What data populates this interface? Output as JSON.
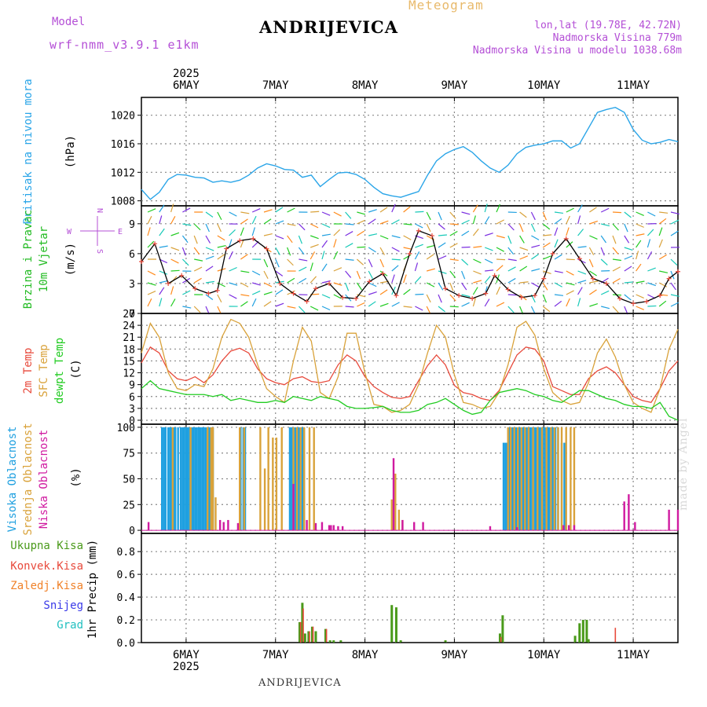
{
  "header": {
    "title": "ANDRIJEVICA",
    "subtitle": "Meteogram",
    "model_label": "Model",
    "model_version": "wrf-nmm_v3.9.1 e1km",
    "location_line": "lon,lat (19.78E, 42.72N)",
    "altitude_line": "Nadmorska Visina 779m",
    "model_altitude_line": "Nadmorska Visina u modelu 1038.68m",
    "bottom_title": "ANDRIJEVICA",
    "credit": "made by Angel"
  },
  "colors": {
    "pressure": "#2aa5e8",
    "wind_label": "#22bb22",
    "temp2m": "#e84a3c",
    "sfc": "#d9a23a",
    "dewpt": "#22cc22",
    "high_cloud": "#1fa0e0",
    "mid_cloud": "#d9a23a",
    "low_cloud": "#d01aa0",
    "total_precip": "#4a9a1a",
    "conv_precip": "#e84a3c",
    "frozen_precip": "#f0822a",
    "snow": "#3a3ae8",
    "grad": "#22c0c0",
    "compass": "#b44fd6"
  },
  "chart_data": [
    {
      "type": "line",
      "title": "",
      "ylabel": "Pritisak na nivou mora",
      "unit": "(hPa)",
      "year": "2025",
      "day_labels": [
        "6MAY",
        "7MAY",
        "8MAY",
        "9MAY",
        "10MAY",
        "11MAY"
      ],
      "day_offsets": [
        0.5,
        1.5,
        2.5,
        3.5,
        4.5,
        5.5
      ],
      "xlim": [
        0,
        6
      ],
      "ylim": [
        1007.3,
        1022.5
      ],
      "yticks": [
        1008,
        1012,
        1016,
        1020
      ],
      "series": [
        {
          "name": "Pritisak na nivou mora",
          "x": [
            0,
            0.1,
            0.2,
            0.3,
            0.4,
            0.5,
            0.6,
            0.7,
            0.8,
            0.9,
            1.0,
            1.1,
            1.2,
            1.3,
            1.4,
            1.5,
            1.6,
            1.7,
            1.8,
            1.9,
            2.0,
            2.1,
            2.2,
            2.3,
            2.4,
            2.5,
            2.6,
            2.7,
            2.8,
            2.9,
            3.0,
            3.1,
            3.2,
            3.3,
            3.4,
            3.5,
            3.6,
            3.7,
            3.8,
            3.9,
            4.0,
            4.1,
            4.2,
            4.3,
            4.4,
            4.5,
            4.6,
            4.7,
            4.8,
            4.9,
            5.0,
            5.1,
            5.2,
            5.3,
            5.4,
            5.5,
            5.6,
            5.7,
            5.8,
            5.9,
            6.0
          ],
          "values": [
            1009.6,
            1008.2,
            1009.2,
            1011.0,
            1011.7,
            1011.6,
            1011.3,
            1011.2,
            1010.6,
            1010.8,
            1010.6,
            1010.9,
            1011.6,
            1012.6,
            1013.2,
            1012.9,
            1012.4,
            1012.3,
            1011.3,
            1011.6,
            1010.0,
            1011.0,
            1011.9,
            1012.0,
            1011.7,
            1011.0,
            1009.9,
            1009.0,
            1008.7,
            1008.5,
            1008.9,
            1009.3,
            1011.6,
            1013.6,
            1014.6,
            1015.2,
            1015.6,
            1014.8,
            1013.6,
            1012.6,
            1012.0,
            1013.0,
            1014.6,
            1015.5,
            1015.8,
            1016.0,
            1016.4,
            1016.4,
            1015.4,
            1016.0,
            1018.2,
            1020.4,
            1020.8,
            1021.1,
            1020.4,
            1018.0,
            1016.5,
            1016.0,
            1016.2,
            1016.6,
            1016.3
          ]
        }
      ]
    },
    {
      "type": "line",
      "title": "",
      "ylabel": "10m Vjetar Brzina i Pravac",
      "unit": "(m/s)",
      "compass": {
        "n": "N",
        "s": "S",
        "w": "W",
        "e": "E"
      },
      "xlim": [
        0,
        6
      ],
      "ylim": [
        0,
        10.8
      ],
      "yticks": [
        0,
        3,
        6,
        9
      ],
      "series": [
        {
          "name": "10m Vjetar Brzina",
          "x": [
            0,
            0.15,
            0.3,
            0.45,
            0.6,
            0.75,
            0.85,
            0.95,
            1.1,
            1.25,
            1.4,
            1.55,
            1.7,
            1.85,
            1.95,
            2.1,
            2.25,
            2.4,
            2.55,
            2.7,
            2.85,
            3.0,
            3.1,
            3.25,
            3.4,
            3.55,
            3.7,
            3.85,
            3.95,
            4.1,
            4.25,
            4.4,
            4.5,
            4.6,
            4.75,
            4.9,
            5.05,
            5.2,
            5.35,
            5.5,
            5.65,
            5.8,
            5.9,
            6.0
          ],
          "values": [
            5.2,
            7.0,
            3.0,
            3.8,
            2.5,
            2.0,
            2.3,
            6.5,
            7.3,
            7.5,
            6.5,
            3.0,
            2.0,
            1.2,
            2.5,
            3.0,
            1.6,
            1.5,
            3.2,
            4.0,
            1.8,
            6.0,
            8.3,
            7.8,
            2.5,
            1.8,
            1.5,
            2.0,
            3.8,
            2.4,
            1.6,
            1.8,
            3.5,
            6.0,
            7.5,
            5.5,
            3.5,
            3.0,
            1.5,
            1.0,
            1.2,
            1.8,
            3.5,
            4.2
          ]
        }
      ]
    },
    {
      "type": "line",
      "title": "",
      "ylabels": [
        "2m Temp",
        "SFC Temp",
        "dewpt Temp"
      ],
      "unit": "(C)",
      "xlim": [
        0,
        6
      ],
      "ylim": [
        -1,
        27
      ],
      "yticks": [
        0,
        3,
        6,
        9,
        12,
        15,
        18,
        21,
        24,
        27
      ],
      "x": [
        0,
        0.1,
        0.2,
        0.3,
        0.4,
        0.5,
        0.6,
        0.7,
        0.8,
        0.9,
        1.0,
        1.1,
        1.2,
        1.3,
        1.4,
        1.5,
        1.6,
        1.7,
        1.8,
        1.9,
        2.0,
        2.1,
        2.2,
        2.3,
        2.4,
        2.5,
        2.6,
        2.7,
        2.8,
        2.9,
        3.0,
        3.1,
        3.2,
        3.3,
        3.4,
        3.5,
        3.6,
        3.7,
        3.8,
        3.9,
        4.0,
        4.1,
        4.2,
        4.3,
        4.4,
        4.5,
        4.6,
        4.7,
        4.8,
        4.9,
        5.0,
        5.1,
        5.2,
        5.3,
        5.4,
        5.5,
        5.6,
        5.7,
        5.8,
        5.9,
        6.0
      ],
      "series": [
        {
          "name": "2m Temp",
          "values": [
            14.5,
            18.5,
            17.0,
            12.5,
            10.5,
            10.0,
            11.0,
            9.5,
            11.5,
            15.0,
            17.5,
            18.2,
            17.0,
            13.0,
            10.5,
            9.5,
            9.0,
            10.5,
            11.0,
            9.8,
            9.5,
            10.0,
            14.0,
            16.5,
            15.0,
            11.0,
            8.5,
            7.0,
            5.8,
            5.5,
            6.0,
            10.0,
            13.8,
            16.5,
            14.0,
            8.8,
            7.0,
            6.5,
            5.5,
            5.0,
            7.5,
            12.0,
            16.5,
            18.5,
            18.0,
            15.0,
            8.5,
            7.5,
            6.5,
            6.5,
            10.5,
            12.5,
            13.5,
            12.0,
            9.0,
            6.0,
            5.0,
            4.5,
            8.0,
            12.5,
            15.0
          ]
        },
        {
          "name": "SFC Temp",
          "values": [
            17.0,
            24.5,
            21.0,
            12.0,
            8.0,
            7.5,
            9.0,
            8.5,
            13.0,
            21.0,
            25.5,
            24.5,
            21.0,
            14.0,
            8.0,
            6.0,
            4.5,
            15.0,
            23.5,
            20.0,
            7.0,
            5.5,
            11.0,
            22.0,
            22.0,
            12.0,
            4.0,
            3.5,
            2.0,
            2.5,
            4.0,
            9.0,
            17.0,
            24.0,
            21.0,
            11.5,
            4.5,
            4.0,
            3.0,
            3.5,
            7.0,
            14.0,
            23.5,
            25.0,
            21.5,
            13.0,
            7.0,
            5.0,
            4.0,
            4.5,
            9.5,
            17.0,
            20.5,
            16.0,
            9.0,
            4.5,
            3.0,
            2.0,
            8.0,
            18.0,
            23.0
          ]
        },
        {
          "name": "dewpt Temp",
          "values": [
            8.0,
            10.0,
            8.0,
            7.5,
            7.0,
            6.5,
            6.5,
            6.5,
            6.0,
            6.5,
            5.0,
            5.5,
            5.0,
            4.5,
            4.5,
            5.0,
            4.5,
            6.0,
            5.5,
            5.0,
            6.0,
            5.5,
            5.0,
            3.5,
            3.0,
            3.0,
            3.2,
            3.5,
            2.5,
            2.0,
            2.0,
            2.5,
            4.0,
            4.5,
            5.5,
            4.0,
            2.5,
            1.5,
            2.0,
            5.0,
            7.0,
            7.5,
            8.0,
            7.5,
            6.5,
            6.0,
            5.0,
            4.5,
            6.0,
            7.5,
            7.5,
            6.5,
            5.5,
            5.0,
            4.0,
            3.5,
            3.5,
            3.0,
            4.5,
            1.0,
            0.0
          ]
        }
      ]
    },
    {
      "type": "bar",
      "title": "",
      "ylabels": [
        "Visoka Oblacnost",
        "Srednja Oblacnost",
        "Niska Oblacnost"
      ],
      "unit": "(%)",
      "xlim": [
        0,
        6
      ],
      "ylim": [
        -3,
        103
      ],
      "yticks": [
        0,
        25,
        50,
        75,
        100
      ],
      "series": [
        {
          "name": "Visoka Oblacnost",
          "x": [
            0.23,
            0.25,
            0.27,
            0.3,
            0.32,
            0.34,
            0.36,
            0.38,
            0.41,
            0.44,
            0.46,
            0.48,
            0.5,
            0.52,
            0.54,
            0.56,
            0.58,
            0.6,
            0.62,
            0.64,
            0.66,
            0.68,
            0.7,
            0.72,
            0.74,
            0.76,
            0.78,
            0.8,
            1.11,
            1.14,
            1.16,
            1.66,
            1.68,
            1.7,
            1.72,
            1.74,
            1.76,
            1.78,
            1.8,
            1.82,
            4.05,
            4.07,
            4.09,
            4.11,
            4.13,
            4.15,
            4.17,
            4.19,
            4.21,
            4.23,
            4.25,
            4.27,
            4.29,
            4.31,
            4.33,
            4.35,
            4.37,
            4.39,
            4.41,
            4.43,
            4.45,
            4.47,
            4.49,
            4.51,
            4.53,
            4.55,
            4.57,
            4.6,
            4.63,
            4.66,
            4.7,
            4.73
          ],
          "values": [
            100,
            100,
            100,
            100,
            100,
            100,
            100,
            100,
            100,
            100,
            100,
            100,
            100,
            100,
            100,
            100,
            100,
            100,
            100,
            100,
            100,
            100,
            100,
            100,
            100,
            100,
            100,
            100,
            100,
            100,
            100,
            100,
            100,
            100,
            100,
            100,
            100,
            100,
            100,
            100,
            85,
            85,
            85,
            100,
            100,
            100,
            100,
            100,
            100,
            100,
            100,
            100,
            100,
            100,
            100,
            100,
            100,
            100,
            100,
            100,
            100,
            100,
            100,
            100,
            100,
            100,
            100,
            100,
            100,
            100,
            85,
            85
          ]
        },
        {
          "name": "Srednja Oblacnost",
          "x": [
            0.35,
            0.55,
            0.74,
            0.78,
            0.8,
            0.83,
            1.1,
            1.15,
            1.33,
            1.38,
            1.42,
            1.47,
            1.51,
            1.57,
            1.7,
            1.74,
            1.78,
            1.82,
            1.88,
            1.93,
            2.8,
            2.84,
            2.88,
            2.92,
            4.1,
            4.13,
            4.17,
            4.21,
            4.25,
            4.29,
            4.33,
            4.38,
            4.43,
            4.48,
            4.53,
            4.58,
            4.62,
            4.66,
            4.7,
            4.75,
            4.8,
            4.84
          ],
          "values": [
            100,
            100,
            100,
            100,
            100,
            32,
            100,
            100,
            100,
            60,
            100,
            90,
            90,
            100,
            100,
            100,
            100,
            100,
            100,
            100,
            30,
            55,
            20,
            10,
            100,
            100,
            100,
            100,
            100,
            100,
            100,
            100,
            100,
            100,
            100,
            100,
            100,
            100,
            100,
            100,
            100,
            100
          ]
        },
        {
          "name": "Niska Oblacnost",
          "x": [
            0.08,
            0.88,
            0.92,
            0.97,
            1.08,
            1.7,
            1.85,
            1.95,
            2.02,
            2.1,
            2.12,
            2.15,
            2.2,
            2.25,
            2.82,
            2.92,
            3.05,
            3.15,
            3.9,
            4.2,
            4.72,
            4.78,
            4.84,
            5.4,
            5.45,
            5.52,
            5.9,
            6.0
          ],
          "values": [
            8,
            10,
            8,
            10,
            7,
            45,
            10,
            7,
            8,
            5,
            5,
            5,
            4,
            4,
            70,
            10,
            8,
            8,
            4,
            3,
            5,
            5,
            5,
            28,
            35,
            8,
            20,
            20
          ]
        }
      ]
    },
    {
      "type": "bar",
      "title": "",
      "ylabel": "1hr Precip (mm)",
      "legend": [
        "Ukupna Kisa",
        "Konvek.Kisa",
        "Zaledj.Kisa",
        "Snijeg",
        "Grad"
      ],
      "xlim": [
        0,
        6
      ],
      "ylim": [
        0,
        0.96
      ],
      "yticks": [
        0,
        0.2,
        0.4,
        0.6,
        0.8
      ],
      "series": [
        {
          "name": "Ukupna Kisa",
          "x": [
            1.77,
            1.8,
            1.83,
            1.87,
            1.91,
            1.95,
            2.06,
            2.11,
            2.15,
            2.23,
            2.8,
            2.85,
            2.9,
            3.4,
            4.01,
            4.04,
            4.85,
            4.9,
            4.94,
            4.98,
            5.0
          ],
          "values": [
            0.18,
            0.35,
            0.08,
            0.1,
            0.14,
            0.1,
            0.12,
            0.02,
            0.02,
            0.02,
            0.33,
            0.31,
            0.02,
            0.02,
            0.08,
            0.24,
            0.06,
            0.17,
            0.2,
            0.2,
            0.03
          ]
        },
        {
          "name": "Konvek.Kisa",
          "x": [
            1.78,
            1.81,
            1.88,
            1.92,
            2.07,
            4.02,
            5.3
          ],
          "values": [
            0.18,
            0.3,
            0.1,
            0.14,
            0.12,
            0.05,
            0.13
          ]
        }
      ]
    }
  ]
}
